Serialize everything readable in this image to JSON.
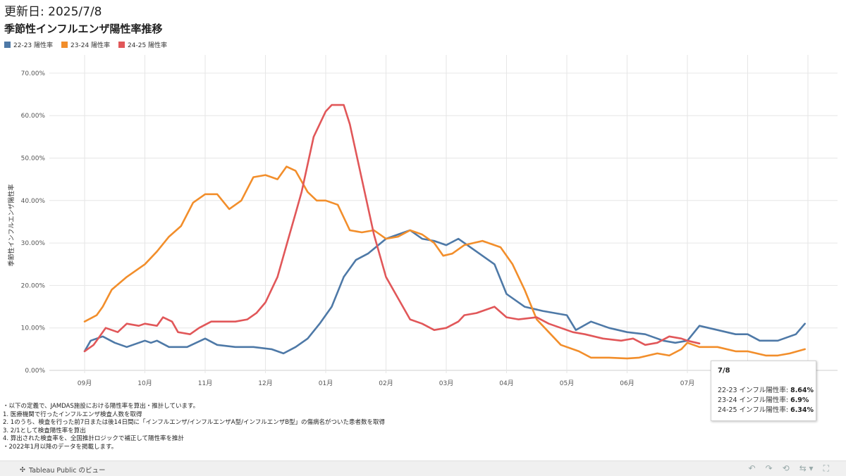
{
  "header": {
    "updated": "更新日: 2025/7/8",
    "title": "季節性インフルエンザ陽性率推移"
  },
  "legend": [
    {
      "label": "22-23 陽性率",
      "color": "#4e79a7"
    },
    {
      "label": "23-24 陽性率",
      "color": "#f28e2b"
    },
    {
      "label": "24-25 陽性率",
      "color": "#e15759"
    }
  ],
  "chart_data": {
    "type": "line",
    "ylabel": "季節性インフルエンザ陽性率",
    "xlabel": "",
    "ylim": [
      0,
      72
    ],
    "yticks": [
      "0.00%",
      "10.00%",
      "20.00%",
      "30.00%",
      "40.00%",
      "50.00%",
      "60.00%",
      "70.00%"
    ],
    "xticks": [
      "09月",
      "10月",
      "11月",
      "12月",
      "01月",
      "02月",
      "03月",
      "04月",
      "05月",
      "06月",
      "07月"
    ],
    "grid": true,
    "x_unit": "month index (0 = 09/01)",
    "series": [
      {
        "name": "22-23 陽性率",
        "color": "#4e79a7",
        "points": [
          [
            0,
            4.5
          ],
          [
            0.1,
            7
          ],
          [
            0.3,
            8
          ],
          [
            0.5,
            6.5
          ],
          [
            0.7,
            5.5
          ],
          [
            1.0,
            7
          ],
          [
            1.1,
            6.5
          ],
          [
            1.2,
            7
          ],
          [
            1.4,
            5.5
          ],
          [
            1.7,
            5.5
          ],
          [
            2.0,
            7.5
          ],
          [
            2.2,
            6
          ],
          [
            2.5,
            5.5
          ],
          [
            2.8,
            5.5
          ],
          [
            3.1,
            5
          ],
          [
            3.3,
            4
          ],
          [
            3.5,
            5.5
          ],
          [
            3.7,
            7.5
          ],
          [
            3.9,
            11
          ],
          [
            4.1,
            15
          ],
          [
            4.3,
            22
          ],
          [
            4.5,
            26
          ],
          [
            4.7,
            27.5
          ],
          [
            5.0,
            31
          ],
          [
            5.2,
            32
          ],
          [
            5.4,
            33
          ],
          [
            5.6,
            31
          ],
          [
            5.8,
            30.5
          ],
          [
            6.0,
            29.5
          ],
          [
            6.2,
            31
          ],
          [
            6.5,
            28
          ],
          [
            6.8,
            25
          ],
          [
            7.0,
            18
          ],
          [
            7.3,
            15
          ],
          [
            7.6,
            14
          ],
          [
            8.0,
            13
          ],
          [
            8.15,
            9.5
          ],
          [
            8.4,
            11.5
          ],
          [
            8.7,
            10
          ],
          [
            9.0,
            9
          ],
          [
            9.3,
            8.5
          ],
          [
            9.6,
            7
          ],
          [
            9.8,
            6.5
          ],
          [
            10.0,
            7
          ],
          [
            10.2,
            10.5
          ],
          [
            10.5,
            9.5
          ],
          [
            10.8,
            8.5
          ],
          [
            11.0,
            8.5
          ],
          [
            11.2,
            7
          ],
          [
            11.5,
            7
          ],
          [
            11.8,
            8.5
          ],
          [
            11.95,
            11
          ]
        ]
      },
      {
        "name": "23-24 陽性率",
        "color": "#f28e2b",
        "points": [
          [
            0,
            11.5
          ],
          [
            0.2,
            13
          ],
          [
            0.3,
            15
          ],
          [
            0.45,
            19
          ],
          [
            0.7,
            22
          ],
          [
            1.0,
            25
          ],
          [
            1.2,
            28
          ],
          [
            1.4,
            31.5
          ],
          [
            1.6,
            34
          ],
          [
            1.8,
            39.5
          ],
          [
            2.0,
            41.5
          ],
          [
            2.2,
            41.5
          ],
          [
            2.4,
            38
          ],
          [
            2.6,
            40
          ],
          [
            2.8,
            45.5
          ],
          [
            3.0,
            46
          ],
          [
            3.2,
            45
          ],
          [
            3.35,
            48
          ],
          [
            3.5,
            47
          ],
          [
            3.7,
            42
          ],
          [
            3.85,
            40
          ],
          [
            4.0,
            40
          ],
          [
            4.2,
            39
          ],
          [
            4.4,
            33
          ],
          [
            4.6,
            32.5
          ],
          [
            4.8,
            33
          ],
          [
            5.0,
            31
          ],
          [
            5.2,
            31.5
          ],
          [
            5.4,
            33
          ],
          [
            5.6,
            32
          ],
          [
            5.8,
            30
          ],
          [
            5.95,
            27
          ],
          [
            6.1,
            27.5
          ],
          [
            6.3,
            29.5
          ],
          [
            6.6,
            30.5
          ],
          [
            6.9,
            29
          ],
          [
            7.1,
            25
          ],
          [
            7.3,
            19
          ],
          [
            7.5,
            12
          ],
          [
            7.7,
            9
          ],
          [
            7.9,
            6
          ],
          [
            8.2,
            4.5
          ],
          [
            8.4,
            3
          ],
          [
            8.7,
            3
          ],
          [
            9.0,
            2.8
          ],
          [
            9.2,
            3
          ],
          [
            9.5,
            4
          ],
          [
            9.7,
            3.5
          ],
          [
            9.9,
            5
          ],
          [
            10.0,
            6.5
          ],
          [
            10.2,
            5.5
          ],
          [
            10.5,
            5.5
          ],
          [
            10.8,
            4.5
          ],
          [
            11.0,
            4.5
          ],
          [
            11.3,
            3.5
          ],
          [
            11.5,
            3.5
          ],
          [
            11.7,
            4
          ],
          [
            11.95,
            5
          ]
        ]
      },
      {
        "name": "24-25 陽性率",
        "color": "#e15759",
        "points": [
          [
            0,
            4.5
          ],
          [
            0.15,
            6
          ],
          [
            0.25,
            8
          ],
          [
            0.35,
            10
          ],
          [
            0.55,
            9
          ],
          [
            0.7,
            11
          ],
          [
            0.9,
            10.5
          ],
          [
            1.0,
            11
          ],
          [
            1.2,
            10.5
          ],
          [
            1.3,
            12.5
          ],
          [
            1.45,
            11.5
          ],
          [
            1.55,
            9
          ],
          [
            1.75,
            8.5
          ],
          [
            1.9,
            10
          ],
          [
            2.1,
            11.5
          ],
          [
            2.3,
            11.5
          ],
          [
            2.5,
            11.5
          ],
          [
            2.7,
            12
          ],
          [
            2.85,
            13.5
          ],
          [
            3.0,
            16
          ],
          [
            3.2,
            22
          ],
          [
            3.4,
            32
          ],
          [
            3.5,
            37
          ],
          [
            3.6,
            42
          ],
          [
            3.8,
            55
          ],
          [
            4.0,
            61
          ],
          [
            4.1,
            62.5
          ],
          [
            4.3,
            62.5
          ],
          [
            4.4,
            58
          ],
          [
            4.6,
            45
          ],
          [
            4.8,
            32
          ],
          [
            5.0,
            22
          ],
          [
            5.2,
            17
          ],
          [
            5.4,
            12
          ],
          [
            5.6,
            11
          ],
          [
            5.8,
            9.5
          ],
          [
            6.0,
            10
          ],
          [
            6.2,
            11.5
          ],
          [
            6.3,
            13
          ],
          [
            6.5,
            13.5
          ],
          [
            6.8,
            15
          ],
          [
            7.0,
            12.5
          ],
          [
            7.2,
            12
          ],
          [
            7.5,
            12.5
          ],
          [
            7.7,
            11
          ],
          [
            7.9,
            10
          ],
          [
            8.1,
            9
          ],
          [
            8.3,
            8.5
          ],
          [
            8.6,
            7.5
          ],
          [
            8.9,
            7
          ],
          [
            9.1,
            7.5
          ],
          [
            9.3,
            6
          ],
          [
            9.5,
            6.5
          ],
          [
            9.7,
            8
          ],
          [
            9.9,
            7.5
          ],
          [
            10.0,
            7
          ],
          [
            10.2,
            6.34
          ]
        ]
      }
    ]
  },
  "tooltip": {
    "date": "7/8",
    "rows": [
      {
        "label": "22-23 インフル陽性率:",
        "value": "8.64%"
      },
      {
        "label": "23-24 インフル陽性率:",
        "value": "6.9%"
      },
      {
        "label": "24-25 インフル陽性率:",
        "value": "6.34%"
      }
    ]
  },
  "notes": [
    "・以下の定義で、JAMDAS施設における陽性率を算出・推計しています。",
    "1. 医療機関で行ったインフルエンザ検査人数を取得",
    "2. 1のうち、検査を行った前7日または後14日間に「インフルエンザ/インフルエンザA型/インフルエンザB型」の傷病名がついた患者数を取得",
    "3. 2/1として検査陽性率を算出",
    "4. 算出された検査率を、全国推計ロジックで補正して陽性率を推計",
    "・2022年1月以降のデータを掲載します。"
  ],
  "footer": {
    "brand": "Tableau Public のビュー"
  }
}
